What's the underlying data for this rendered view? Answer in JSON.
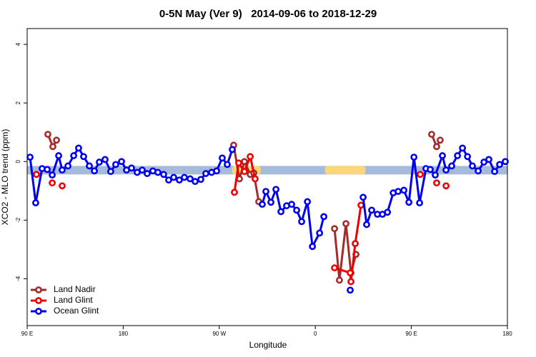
{
  "chart_data": {
    "type": "line",
    "title": "0-5N May (Ver 9)   2014-09-06 to 2018-12-29",
    "x_label": "Longitude",
    "y_label": "XCO2 - MLO trend (ppm)",
    "xlim": [
      90,
      540
    ],
    "xticks": [
      {
        "value": 90,
        "label": "90 E"
      },
      180,
      {
        "value": 270,
        "label": "90 W"
      },
      {
        "value": 360,
        "label": "0"
      },
      {
        "value": 450,
        "label": "90 E"
      },
      {
        "value": 540,
        "label": "180"
      }
    ],
    "ylim": [
      -5.6,
      4.54
    ],
    "yticks": [
      -4,
      -2,
      0,
      2,
      4
    ],
    "legend": "bottom-left",
    "band": {
      "ylim": [
        -0.44,
        -0.15
      ],
      "color": "#a5bbd9"
    },
    "highlights": [
      {
        "xlim": [
          282,
          309
        ],
        "color": "#f8d679"
      },
      {
        "xlim": [
          369,
          407
        ],
        "color": "#f8d679"
      }
    ],
    "series": [
      {
        "name": "Land Nadir",
        "color": "#a52a2a",
        "x": [
          109.4,
          114.1,
          117.5,
          null,
          283.5,
          288.9,
          293.6,
          299,
          302.3,
          307,
          null,
          378,
          382.6,
          388.7,
          393.4,
          398.1,
          null,
          469,
          473.7,
          477
        ],
        "values": [
          0.93,
          0.51,
          0.73,
          null,
          0.56,
          -0.59,
          0,
          -0.44,
          -0.39,
          -1.37,
          null,
          -2.29,
          -4.05,
          -2.12,
          -3.8,
          -3.17,
          null,
          0.93,
          0.51,
          0.73
        ]
      },
      {
        "name": "Land Glint",
        "color": "#ee0000",
        "x": [
          98.7,
          null,
          113.5,
          null,
          122.8,
          null,
          284.2,
          288.2,
          293.6,
          299,
          303.6,
          null,
          378,
          392.7,
          393.4,
          397.4,
          402.8,
          null,
          458.3,
          null,
          473.7,
          null,
          482.5
        ],
        "values": [
          -0.44,
          null,
          -0.73,
          null,
          -0.83,
          null,
          -1.05,
          -0.05,
          -0.34,
          0.17,
          -0.59,
          null,
          -3.63,
          -3.8,
          -4.1,
          -2.8,
          -1.49,
          null,
          -0.44,
          null,
          -0.73,
          null,
          -0.83
        ]
      },
      {
        "name": "Ocean Glint",
        "color": "#0000ee",
        "x": [
          92.7,
          98,
          104,
          108.8,
          113.5,
          119.5,
          122.8,
          128.2,
          133.6,
          138.2,
          142.9,
          148.3,
          153,
          157.6,
          163,
          168.3,
          173,
          178.4,
          183.1,
          187.8,
          193.1,
          197.8,
          202.5,
          207.8,
          212.5,
          217.9,
          222.6,
          227.3,
          232.6,
          237.3,
          242.7,
          247.4,
          252.7,
          257.4,
          262.8,
          267.5,
          272.8,
          277.5,
          282.2,
          null,
          310.3,
          313.7,
          318.4,
          323.1,
          327.8,
          333.1,
          337.8,
          342.5,
          347.2,
          352.6,
          357.3,
          364,
          368,
          null,
          392.7,
          null,
          404.8,
          408.1,
          412.8,
          418.2,
          422.9,
          427.6,
          433,
          437.6,
          443,
          447.7,
          452.4,
          457.7,
          463.7,
          467.7,
          472.4,
          479.1,
          482.5,
          487.8,
          493.2,
          497.9,
          502.6,
          507.2,
          512.6,
          518,
          522.6,
          528,
          532.7,
          538
        ],
        "values": [
          0.15,
          -1.41,
          -0.24,
          -0.27,
          -0.46,
          0.2,
          -0.29,
          -0.15,
          0.2,
          0.46,
          0.17,
          -0.15,
          -0.32,
          -0.02,
          0.07,
          -0.34,
          -0.1,
          0,
          -0.29,
          -0.22,
          -0.37,
          -0.29,
          -0.41,
          -0.32,
          -0.37,
          -0.44,
          -0.63,
          -0.54,
          -0.63,
          -0.54,
          -0.59,
          -0.68,
          -0.61,
          -0.41,
          -0.37,
          -0.32,
          0.12,
          -0.1,
          0.41,
          null,
          -1.46,
          -1.02,
          -1.39,
          -0.95,
          -1.71,
          -1.51,
          -1.46,
          -1.66,
          -2.05,
          -1.37,
          -2.9,
          -2.44,
          -1.88,
          null,
          -4.39,
          null,
          -1.22,
          -2.15,
          -1.66,
          -1.8,
          -1.8,
          -1.73,
          -1.07,
          -1.02,
          -0.98,
          -1.39,
          0.15,
          -1.41,
          -0.24,
          -0.27,
          -0.46,
          0.2,
          -0.29,
          -0.15,
          0.2,
          0.46,
          0.17,
          -0.15,
          -0.32,
          -0.02,
          0.07,
          -0.34,
          -0.1,
          0
        ]
      }
    ]
  }
}
